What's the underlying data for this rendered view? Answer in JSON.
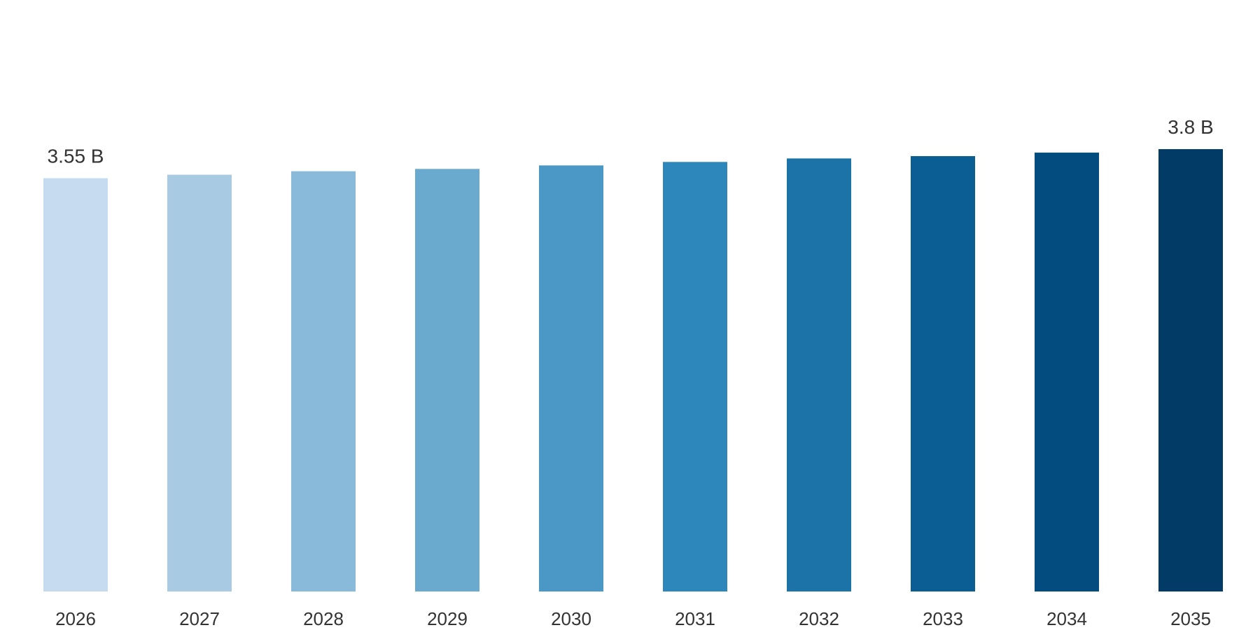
{
  "chart_data": {
    "type": "bar",
    "title": "",
    "xlabel": "",
    "ylabel": "",
    "categories": [
      "2026",
      "2027",
      "2028",
      "2029",
      "2030",
      "2031",
      "2032",
      "2033",
      "2034",
      "2035"
    ],
    "values": [
      3.55,
      3.58,
      3.61,
      3.63,
      3.66,
      3.69,
      3.72,
      3.74,
      3.77,
      3.8
    ],
    "unit": "B",
    "data_labels": [
      {
        "category": "2026",
        "text": "3.55 B"
      },
      {
        "category": "2035",
        "text": "3.8 B"
      }
    ],
    "ylim": [
      0,
      4.6
    ],
    "grid": false,
    "legend": "none",
    "colors": [
      "#c6dbef",
      "#a9cae3",
      "#89bada",
      "#6aaacf",
      "#4b98c7",
      "#2e87bb",
      "#1c73a8",
      "#0a5e93",
      "#034c7f",
      "#023b66"
    ]
  }
}
